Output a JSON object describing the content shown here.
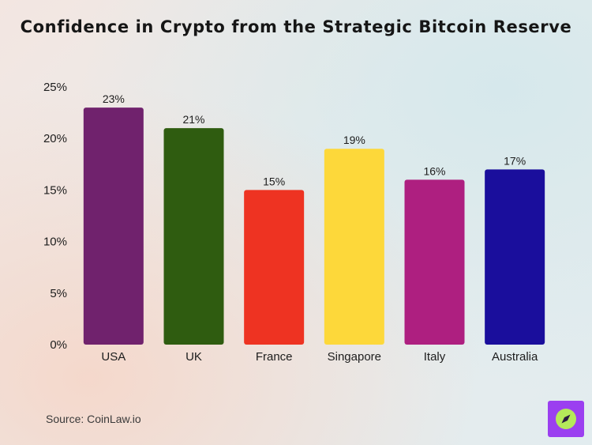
{
  "chart_data": {
    "type": "bar",
    "title": "Confidence in Crypto from the Strategic Bitcoin Reserve",
    "xlabel": "",
    "ylabel": "",
    "categories": [
      "USA",
      "UK",
      "France",
      "Singapore",
      "Italy",
      "Australia"
    ],
    "values": [
      23,
      21,
      15,
      19,
      16,
      17
    ],
    "value_labels": [
      "23%",
      "21%",
      "15%",
      "19%",
      "16%",
      "17%"
    ],
    "bar_colors": [
      "#70226d",
      "#2f5c10",
      "#ee3322",
      "#fdd83a",
      "#ae1f80",
      "#1a0e9c"
    ],
    "ylim": [
      0,
      25
    ],
    "y_ticks": [
      0,
      5,
      10,
      15,
      20,
      25
    ],
    "y_tick_labels": [
      "0%",
      "5%",
      "10%",
      "15%",
      "20%",
      "25%"
    ],
    "grid": false,
    "legend": "none"
  },
  "source": "Source: CoinLaw.io",
  "logo": {
    "icon": "compass-icon",
    "background": "#9b3ff0",
    "accent": "#b5e85a"
  }
}
